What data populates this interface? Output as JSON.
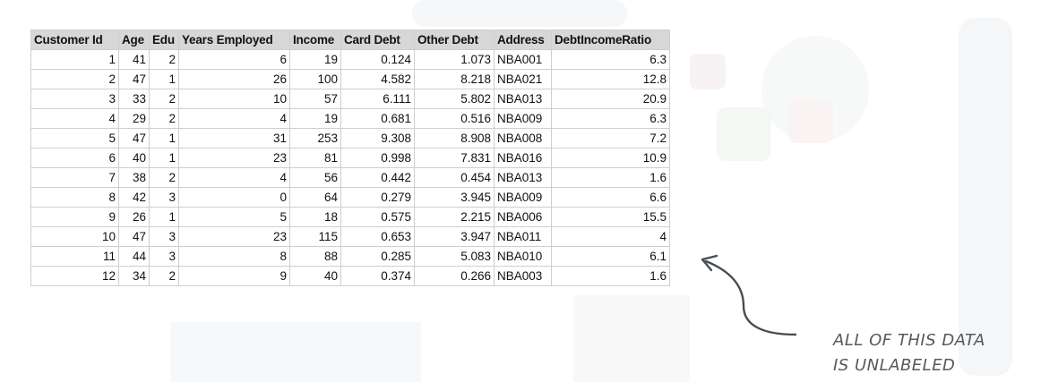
{
  "table": {
    "headers": [
      "Customer Id",
      "Age",
      "Edu",
      "Years Employed",
      "Income",
      "Card Debt",
      "Other Debt",
      "Address",
      "DebtIncomeRatio"
    ],
    "rows": [
      [
        "1",
        "41",
        "2",
        "6",
        "19",
        "0.124",
        "1.073",
        "NBA001",
        "6.3"
      ],
      [
        "2",
        "47",
        "1",
        "26",
        "100",
        "4.582",
        "8.218",
        "NBA021",
        "12.8"
      ],
      [
        "3",
        "33",
        "2",
        "10",
        "57",
        "6.111",
        "5.802",
        "NBA013",
        "20.9"
      ],
      [
        "4",
        "29",
        "2",
        "4",
        "19",
        "0.681",
        "0.516",
        "NBA009",
        "6.3"
      ],
      [
        "5",
        "47",
        "1",
        "31",
        "253",
        "9.308",
        "8.908",
        "NBA008",
        "7.2"
      ],
      [
        "6",
        "40",
        "1",
        "23",
        "81",
        "0.998",
        "7.831",
        "NBA016",
        "10.9"
      ],
      [
        "7",
        "38",
        "2",
        "4",
        "56",
        "0.442",
        "0.454",
        "NBA013",
        "1.6"
      ],
      [
        "8",
        "42",
        "3",
        "0",
        "64",
        "0.279",
        "3.945",
        "NBA009",
        "6.6"
      ],
      [
        "9",
        "26",
        "1",
        "5",
        "18",
        "0.575",
        "2.215",
        "NBA006",
        "15.5"
      ],
      [
        "10",
        "47",
        "3",
        "23",
        "115",
        "0.653",
        "3.947",
        "NBA011",
        "4"
      ],
      [
        "11",
        "44",
        "3",
        "8",
        "88",
        "0.285",
        "5.083",
        "NBA010",
        "6.1"
      ],
      [
        "12",
        "34",
        "2",
        "9",
        "40",
        "0.374",
        "0.266",
        "NBA003",
        "1.6"
      ]
    ]
  },
  "annotation": {
    "line1": "ALL OF THIS DATA",
    "line2": "IS UNLABELED",
    "arrow_icon": "curved-arrow-icon",
    "color": "#454c55"
  }
}
